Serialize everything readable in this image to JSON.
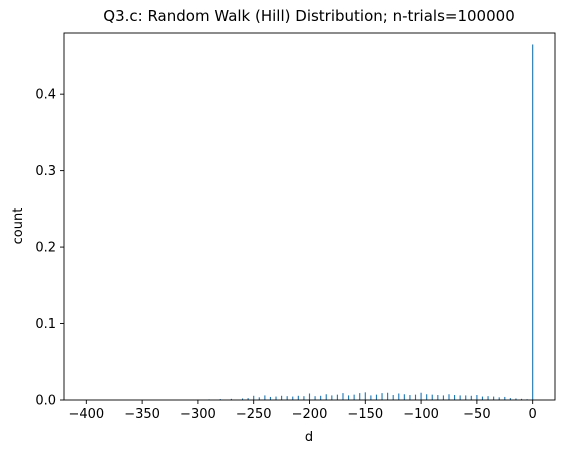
{
  "chart_data": {
    "type": "bar",
    "title": "Q3.c: Random Walk (Hill) Distribution; n-trials=100000",
    "xlabel": "d",
    "ylabel": "count",
    "xlim": [
      -420,
      20
    ],
    "ylim": [
      0,
      0.48
    ],
    "x_ticks": [
      -400,
      -350,
      -300,
      -250,
      -200,
      -150,
      -100,
      -50,
      0
    ],
    "x_tick_labels": [
      "−400",
      "−350",
      "−300",
      "−250",
      "−200",
      "−150",
      "−100",
      "−50",
      "0"
    ],
    "y_ticks": [
      0.0,
      0.1,
      0.2,
      0.3,
      0.4
    ],
    "y_tick_labels": [
      "0.0",
      "0.1",
      "0.2",
      "0.3",
      "0.4"
    ],
    "grid": false,
    "bar_color": "#1f77b4",
    "bar_width": 1,
    "x": [
      -300,
      -290,
      -280,
      -270,
      -260,
      -255,
      -250,
      -245,
      -240,
      -235,
      -230,
      -225,
      -220,
      -215,
      -210,
      -205,
      -200,
      -195,
      -190,
      -185,
      -180,
      -175,
      -170,
      -165,
      -160,
      -155,
      -150,
      -145,
      -140,
      -135,
      -130,
      -125,
      -120,
      -115,
      -110,
      -105,
      -100,
      -95,
      -90,
      -85,
      -80,
      -75,
      -70,
      -65,
      -60,
      -55,
      -50,
      -45,
      -40,
      -35,
      -30,
      -25,
      -20,
      -15,
      -10,
      -5,
      0
    ],
    "values": [
      0.0005,
      0.0008,
      0.0012,
      0.0015,
      0.002,
      0.0025,
      0.0055,
      0.0035,
      0.006,
      0.004,
      0.0045,
      0.0055,
      0.005,
      0.0045,
      0.0055,
      0.005,
      0.0085,
      0.005,
      0.0055,
      0.0075,
      0.006,
      0.007,
      0.009,
      0.006,
      0.007,
      0.009,
      0.01,
      0.006,
      0.007,
      0.009,
      0.0095,
      0.0065,
      0.0085,
      0.0075,
      0.0065,
      0.007,
      0.0095,
      0.0075,
      0.007,
      0.0065,
      0.006,
      0.0075,
      0.0065,
      0.006,
      0.006,
      0.0055,
      0.0065,
      0.0045,
      0.005,
      0.0045,
      0.0035,
      0.004,
      0.0025,
      0.002,
      0.0015,
      0.001,
      0.465
    ]
  }
}
